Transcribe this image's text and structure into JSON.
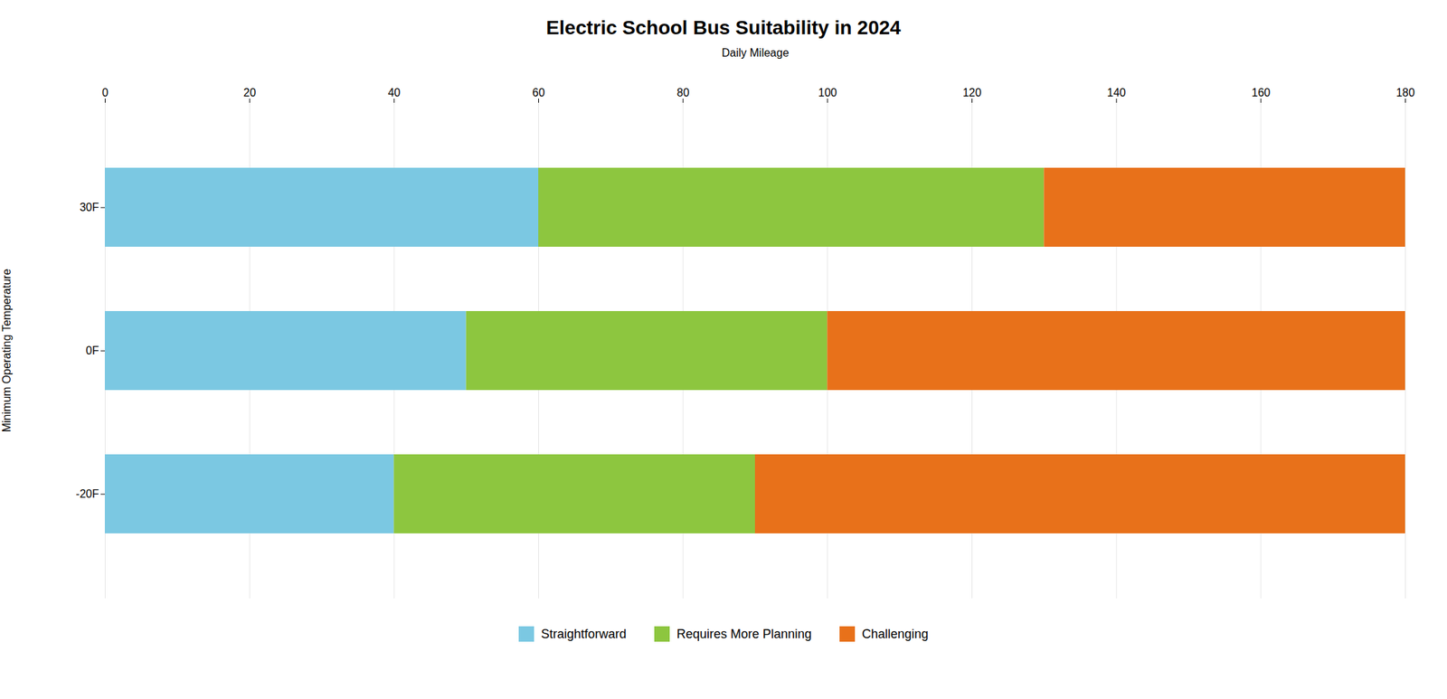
{
  "chart_data": {
    "type": "bar",
    "orientation": "horizontal",
    "stacked": true,
    "title": "Electric School Bus Suitability in 2024",
    "xlabel": "Daily Mileage",
    "ylabel": "Minimum Operating Temperature",
    "categories": [
      "30F",
      "0F",
      "-20F"
    ],
    "series": [
      {
        "name": "Straightforward",
        "color": "#7BC8E2",
        "values": [
          60,
          50,
          40
        ]
      },
      {
        "name": "Requires More Planning",
        "color": "#8DC63F",
        "values": [
          70,
          50,
          50
        ]
      },
      {
        "name": "Challenging",
        "color": "#E8711A",
        "values": [
          50,
          80,
          90
        ]
      }
    ],
    "xlim": [
      0,
      180
    ],
    "xticks": [
      0,
      20,
      40,
      60,
      80,
      100,
      120,
      140,
      160,
      180
    ],
    "grid": true,
    "legend": "bottom"
  }
}
